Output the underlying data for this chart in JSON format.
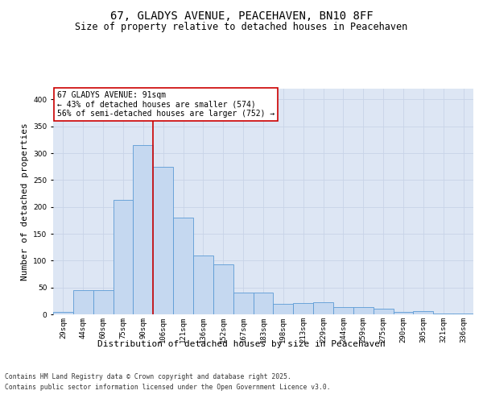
{
  "title": "67, GLADYS AVENUE, PEACEHAVEN, BN10 8FF",
  "subtitle": "Size of property relative to detached houses in Peacehaven",
  "xlabel": "Distribution of detached houses by size in Peacehaven",
  "ylabel": "Number of detached properties",
  "categories": [
    "29sqm",
    "44sqm",
    "60sqm",
    "75sqm",
    "90sqm",
    "106sqm",
    "121sqm",
    "136sqm",
    "152sqm",
    "167sqm",
    "183sqm",
    "198sqm",
    "213sqm",
    "229sqm",
    "244sqm",
    "259sqm",
    "275sqm",
    "290sqm",
    "305sqm",
    "321sqm",
    "336sqm"
  ],
  "values": [
    5,
    45,
    45,
    213,
    315,
    275,
    180,
    110,
    93,
    40,
    40,
    20,
    21,
    22,
    14,
    13,
    10,
    5,
    6,
    2,
    1
  ],
  "bar_color": "#c5d8f0",
  "bar_edge_color": "#5b9bd5",
  "grid_color": "#c8d4e8",
  "background_color": "#dde6f4",
  "vline_x_idx": 4,
  "vline_color": "#cc0000",
  "annotation_text": "67 GLADYS AVENUE: 91sqm\n← 43% of detached houses are smaller (574)\n56% of semi-detached houses are larger (752) →",
  "annotation_box_color": "#ffffff",
  "annotation_box_edge_color": "#cc0000",
  "footer1": "Contains HM Land Registry data © Crown copyright and database right 2025.",
  "footer2": "Contains public sector information licensed under the Open Government Licence v3.0.",
  "ylim": [
    0,
    420
  ],
  "yticks": [
    0,
    50,
    100,
    150,
    200,
    250,
    300,
    350,
    400
  ],
  "title_fontsize": 10,
  "subtitle_fontsize": 8.5,
  "tick_fontsize": 6.5,
  "ylabel_fontsize": 8,
  "xlabel_fontsize": 8,
  "annotation_fontsize": 7,
  "footer_fontsize": 5.8
}
